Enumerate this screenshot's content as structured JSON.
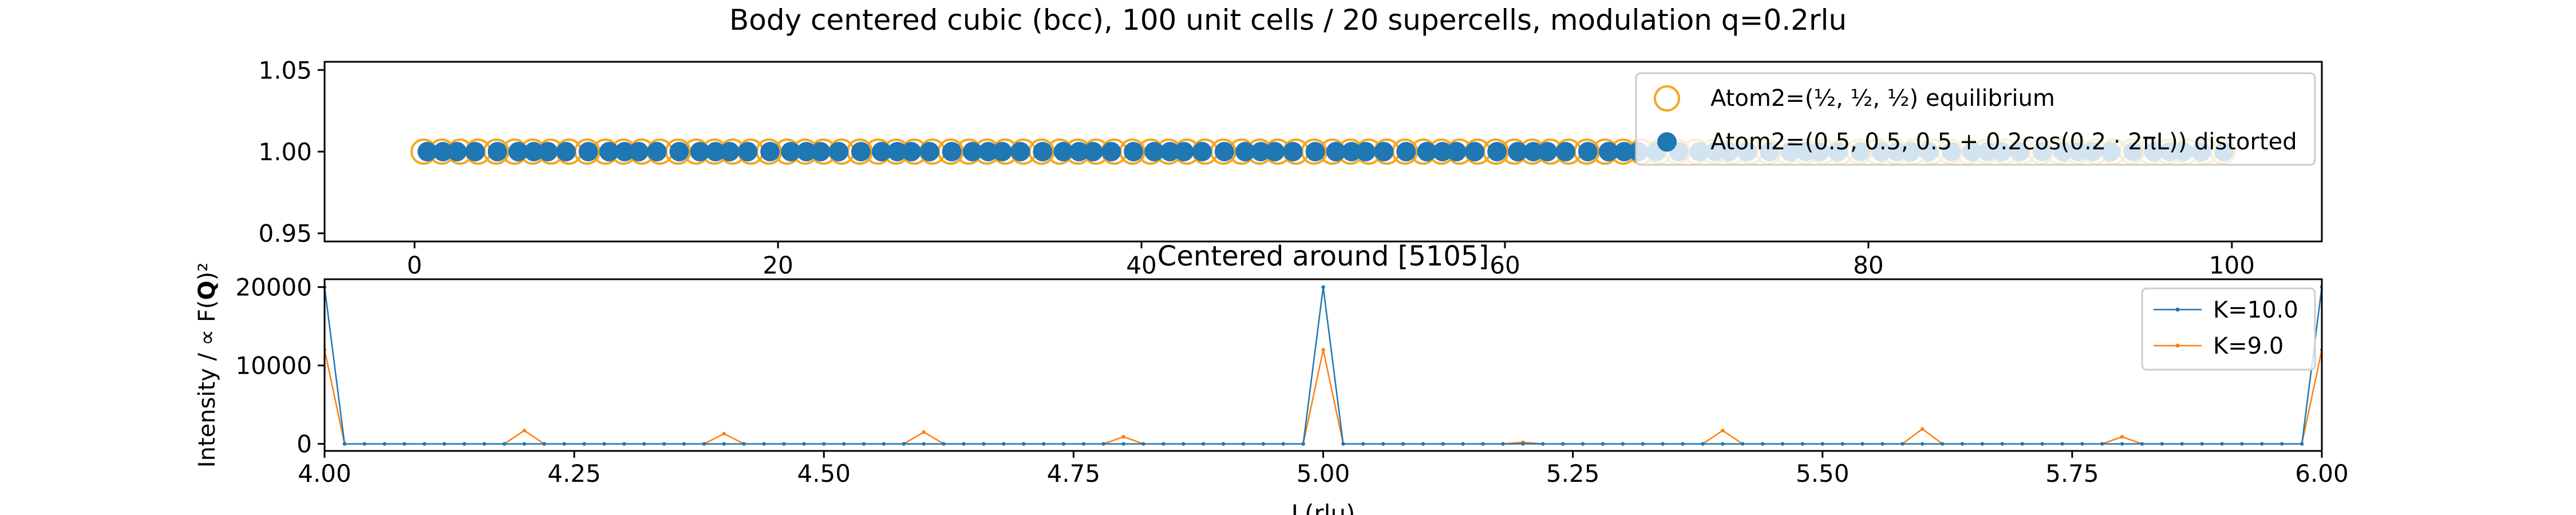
{
  "figure_title": "Body centered cubic (bcc), 100 unit cells / 20 supercells, modulation q=0.2rlu",
  "colors": {
    "equilibrium": "#f5a623",
    "distorted": "#1f77b4",
    "k10": "#1f77b4",
    "k9": "#ff7f0e"
  },
  "chart_data": [
    {
      "type": "scatter",
      "title": "",
      "xlim": [
        -4.95,
        104.95
      ],
      "ylim": [
        0.945,
        1.055
      ],
      "xticks": [
        0,
        20,
        40,
        60,
        80,
        100
      ],
      "yticks": [
        0.95,
        1.0,
        1.05
      ],
      "ytick_labels": [
        "0.95",
        "1.00",
        "1.05"
      ],
      "legend_placement": "upper right",
      "series": [
        {
          "name": "Atom2=(1/2, 1/2, 1/2) equilibrium",
          "marker": "open-circle",
          "color": "#f5a623",
          "count": 100,
          "x_start": 0.5,
          "x_step": 1,
          "y": 1.0
        },
        {
          "name": "Atom2=(0.5, 0.5, 0.5 + 0.2cos(0.2 · 2πL)) distorted",
          "marker": "filled-circle",
          "color": "#1f77b4",
          "count": 100,
          "x_start": 0.5,
          "x_step": 1,
          "amplitude": 0.2,
          "q": 0.2,
          "y": 1.0
        }
      ]
    },
    {
      "type": "line",
      "title": "Centered around [5105]",
      "xlabel": "L(rlu)",
      "ylabel": "Intensity / ∝ F(Q)²",
      "xlim": [
        4.0,
        6.0
      ],
      "ylim": [
        -900,
        21000
      ],
      "xticks": [
        4.0,
        4.25,
        4.5,
        4.75,
        5.0,
        5.25,
        5.5,
        5.75,
        6.0
      ],
      "xtick_labels": [
        "4.00",
        "4.25",
        "4.50",
        "4.75",
        "5.00",
        "5.25",
        "5.50",
        "5.75",
        "6.00"
      ],
      "yticks": [
        0,
        10000,
        20000
      ],
      "ytick_labels": [
        "0",
        "10000",
        "20000"
      ],
      "legend_placement": "upper right",
      "x_start": 4.0,
      "x_step": 0.02,
      "x_count": 101,
      "series": [
        {
          "name": "K=10.0",
          "color": "#1f77b4",
          "baseline": 0,
          "peaks": [
            [
              4.0,
              20000
            ],
            [
              5.0,
              20000
            ],
            [
              6.0,
              20000
            ]
          ]
        },
        {
          "name": "K=9.0",
          "color": "#ff7f0e",
          "baseline": 0,
          "peaks": [
            [
              4.0,
              12000
            ],
            [
              4.2,
              1700
            ],
            [
              4.4,
              1300
            ],
            [
              4.6,
              1500
            ],
            [
              4.8,
              900
            ],
            [
              5.0,
              12000
            ],
            [
              5.2,
              200
            ],
            [
              5.4,
              1700
            ],
            [
              5.6,
              1900
            ],
            [
              5.8,
              900
            ],
            [
              6.0,
              12000
            ]
          ]
        }
      ]
    }
  ]
}
